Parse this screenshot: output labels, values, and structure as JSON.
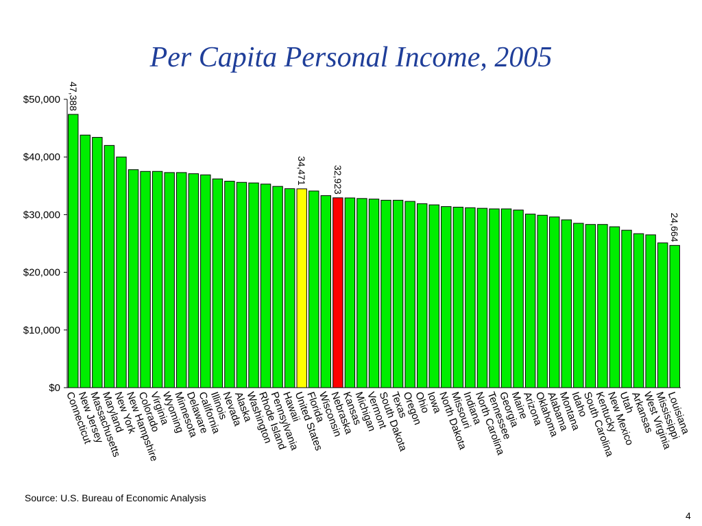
{
  "slide": {
    "title": "Per Capita Personal Income, 2005",
    "source": "Source:  U.S. Bureau of Economic Analysis",
    "page_number": "4"
  },
  "chart_data": {
    "type": "bar",
    "title": "Per Capita Personal Income, 2005",
    "xlabel": "",
    "ylabel": "",
    "ylim": [
      0,
      50000
    ],
    "yticks": [
      0,
      10000,
      20000,
      30000,
      40000,
      50000
    ],
    "ytick_labels": [
      "$0",
      "$10,000",
      "$20,000",
      "$30,000",
      "$40,000",
      "$50,000"
    ],
    "grid": false,
    "legend": "none",
    "colors": {
      "default": "#00ee00",
      "highlight_us": "#ffff00",
      "highlight_ne": "#ff0000",
      "outline": "#000000"
    },
    "categories": [
      "Connecticut",
      "New Jersey",
      "Massachusetts",
      "Maryland",
      "New York",
      "New Hampshire",
      "Colorado",
      "Virginia",
      "Wyoming",
      "Minnesota",
      "Delaware",
      "California",
      "Illinois",
      "Nevada",
      "Alaska",
      "Washington",
      "Rhode Island",
      "Pennsylvania",
      "Hawaii",
      "United States",
      "Florida",
      "Wisconsin",
      "Nebraska",
      "Kansas",
      "Michigan",
      "Vermont",
      "South Dakota",
      "Texas",
      "Oregon",
      "Ohio",
      "Iowa",
      "North Dakota",
      "Missouri",
      "Indiana",
      "North Carolina",
      "Tennessee",
      "Georgia",
      "Maine",
      "Arizona",
      "Oklahoma",
      "Alabama",
      "Montana",
      "Idaho",
      "South Carolina",
      "Kentucky",
      "New Mexico",
      "Utah",
      "Arkansas",
      "West Virginia",
      "Mississippi",
      "Louisiana"
    ],
    "values": [
      47388,
      43800,
      43400,
      42000,
      40000,
      37800,
      37500,
      37500,
      37300,
      37300,
      37100,
      36900,
      36200,
      35800,
      35600,
      35500,
      35300,
      34900,
      34500,
      34471,
      34100,
      33300,
      32923,
      32900,
      32800,
      32700,
      32500,
      32500,
      32300,
      31900,
      31700,
      31400,
      31300,
      31200,
      31100,
      31000,
      31000,
      30800,
      30100,
      29900,
      29600,
      29100,
      28500,
      28300,
      28300,
      27900,
      27300,
      26700,
      26500,
      25100,
      24664
    ],
    "bar_colors": [
      "default",
      "default",
      "default",
      "default",
      "default",
      "default",
      "default",
      "default",
      "default",
      "default",
      "default",
      "default",
      "default",
      "default",
      "default",
      "default",
      "default",
      "default",
      "default",
      "highlight_us",
      "default",
      "default",
      "highlight_ne",
      "default",
      "default",
      "default",
      "default",
      "default",
      "default",
      "default",
      "default",
      "default",
      "default",
      "default",
      "default",
      "default",
      "default",
      "default",
      "default",
      "default",
      "default",
      "default",
      "default",
      "default",
      "default",
      "default",
      "default",
      "default",
      "default",
      "default",
      "default"
    ],
    "data_labels": [
      {
        "category": "Connecticut",
        "text": "47,388"
      },
      {
        "category": "United States",
        "text": "34,471"
      },
      {
        "category": "Nebraska",
        "text": "32,923"
      },
      {
        "category": "Louisiana",
        "text": "24,664"
      }
    ]
  }
}
